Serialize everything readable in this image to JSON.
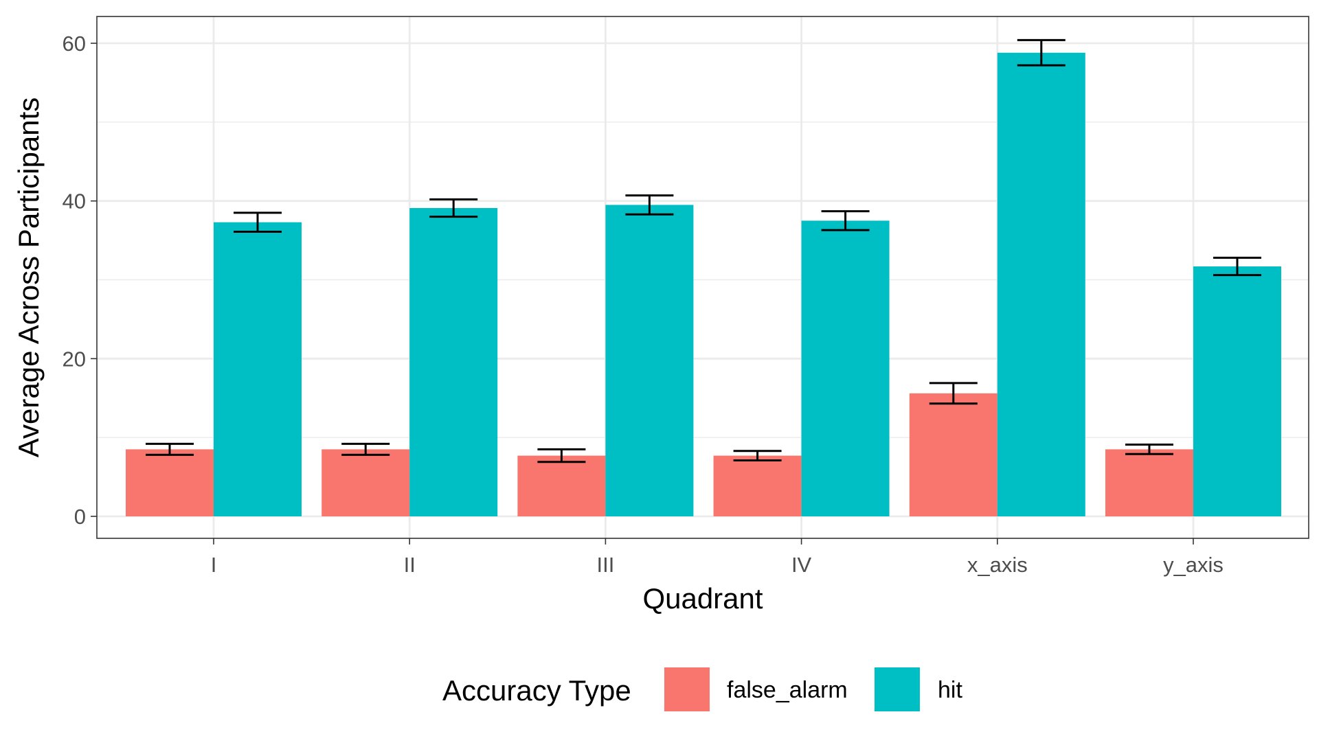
{
  "chart_data": {
    "type": "bar",
    "title": "",
    "xlabel": "Quadrant",
    "ylabel": "Average Across Participants",
    "categories": [
      "I",
      "II",
      "III",
      "IV",
      "x_axis",
      "y_axis"
    ],
    "ylim": [
      0,
      63
    ],
    "yticks": [
      0,
      20,
      40,
      60
    ],
    "grid": true,
    "legend_title": "Accuracy Type",
    "legend_position": "bottom",
    "series": [
      {
        "name": "false_alarm",
        "color": "#F8766D",
        "values": [
          8.5,
          8.5,
          7.7,
          7.7,
          15.6,
          8.5
        ],
        "error": [
          0.7,
          0.7,
          0.8,
          0.6,
          1.3,
          0.6
        ]
      },
      {
        "name": "hit",
        "color": "#00BFC4",
        "values": [
          37.3,
          39.1,
          39.5,
          37.5,
          58.8,
          31.7
        ],
        "error": [
          1.2,
          1.1,
          1.2,
          1.2,
          1.6,
          1.1
        ]
      }
    ]
  }
}
